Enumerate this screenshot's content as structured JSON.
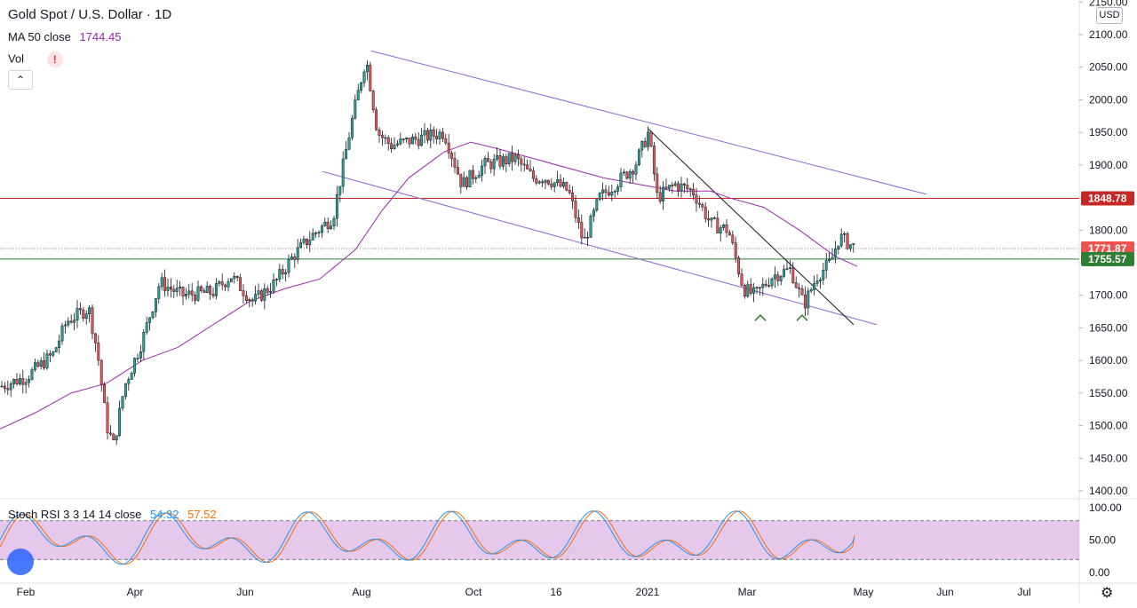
{
  "header": {
    "title": "Gold Spot / U.S. Dollar · 1D",
    "ma_label": "MA 50 close",
    "ma_value": "1744.45",
    "vol_label": "Vol",
    "warn_glyph": "!",
    "collapse_glyph": "⌃",
    "currency": "USD"
  },
  "stoch_legend": {
    "label": "Stoch RSI 3 3 14 14 close",
    "k_value": "54.32",
    "d_value": "57.52"
  },
  "colors": {
    "ma": "#9c27b0",
    "channel": "#8e66d6",
    "resistance": "#c62828",
    "support": "#2e7d32",
    "price": "#131722",
    "up_candle": "#26a69a",
    "down_candle": "#ef5350",
    "stoch_k": "#2196f3",
    "stoch_d": "#ff6d00",
    "stoch_band": "#e1bee7"
  },
  "chart_data": [
    {
      "type": "candlestick",
      "title": "Gold Spot / U.S. Dollar · 1D",
      "y_axis_ticks": [
        "2150.00",
        "2100.00",
        "2050.00",
        "2000.00",
        "1950.00",
        "1900.00",
        "1850.00",
        "1800.00",
        "1750.00",
        "1700.00",
        "1650.00",
        "1600.00",
        "1550.00",
        "1500.00",
        "1450.00",
        "1400.00"
      ],
      "ylim": [
        1400,
        2150
      ],
      "x_axis_ticks": [
        "Feb",
        "Apr",
        "Jun",
        "Aug",
        "Oct",
        "16",
        "2021",
        "Mar",
        "May",
        "Jun",
        "Jul"
      ],
      "grid": false,
      "price_path": [
        [
          "Feb",
          1570
        ],
        [
          "Mar",
          1655
        ],
        [
          "Mar",
          1470
        ],
        [
          "Apr",
          1600
        ],
        [
          "Apr",
          1720
        ],
        [
          "May",
          1715
        ],
        [
          "Jun",
          1740
        ],
        [
          "Jun",
          1690
        ],
        [
          "Jul",
          1770
        ],
        [
          "Jul",
          1790
        ],
        [
          "Aug",
          2065
        ],
        [
          "Aug",
          1920
        ],
        [
          "Sep",
          1960
        ],
        [
          "Sep",
          1875
        ],
        [
          "Oct",
          1900
        ],
        [
          "Oct",
          1910
        ],
        [
          "Nov",
          1940
        ],
        [
          "Nov",
          1780
        ],
        [
          "Dec",
          1860
        ],
        [
          "Dec",
          1880
        ],
        [
          "2021",
          1945
        ],
        [
          "Jan",
          1850
        ],
        [
          "Feb",
          1860
        ],
        [
          "Feb",
          1790
        ],
        [
          "Mar",
          1690
        ],
        [
          "Mar",
          1730
        ],
        [
          "Mar",
          1680
        ],
        [
          "Apr",
          1730
        ],
        [
          "Apr",
          1790
        ],
        [
          "Apr",
          1771.87
        ]
      ],
      "ma50_path": [
        [
          "Feb",
          1495
        ],
        [
          "Mar",
          1560
        ],
        [
          "Apr",
          1590
        ],
        [
          "May",
          1660
        ],
        [
          "Jun",
          1700
        ],
        [
          "Jul",
          1750
        ],
        [
          "Aug",
          1880
        ],
        [
          "Sep",
          1930
        ],
        [
          "Oct",
          1925
        ],
        [
          "Nov",
          1905
        ],
        [
          "Dec",
          1875
        ],
        [
          "2021",
          1860
        ],
        [
          "Feb",
          1845
        ],
        [
          "Mar",
          1800
        ],
        [
          "Apr",
          1744.45
        ]
      ],
      "annotations": [
        {
          "label": "1848.78",
          "kind": "resistance line"
        },
        {
          "label": "1771.87",
          "kind": "last price"
        },
        {
          "label": "1755.57",
          "kind": "support line"
        }
      ],
      "drawings": [
        "descending channel top",
        "descending channel bottom",
        "downtrend line",
        "double bottom markers"
      ]
    },
    {
      "type": "line",
      "title": "Stoch RSI 3 3 14 14 close",
      "y_axis_ticks": [
        "100.00",
        "50.00",
        "0.00"
      ],
      "ylim": [
        0,
        100
      ],
      "band": [
        20,
        80
      ],
      "series": [
        {
          "name": "K",
          "last": 54.32
        },
        {
          "name": "D",
          "last": 57.52
        }
      ]
    }
  ]
}
